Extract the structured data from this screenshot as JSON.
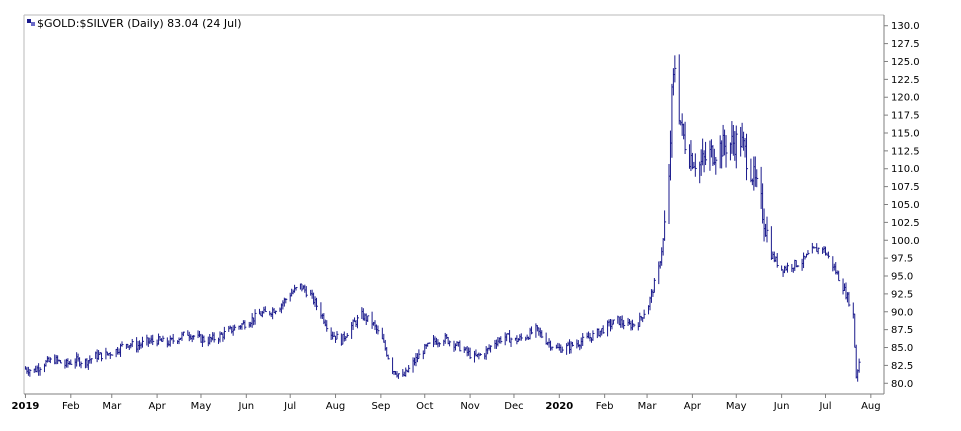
{
  "chart_data": {
    "type": "line",
    "style": "ohlc-bars",
    "title": "$GOLD:$SILVER (Daily) 83.04 (24 Jul)",
    "symbol_icon": "chart-icon",
    "xlabel": "",
    "ylabel": "",
    "ylim": [
      78.5,
      131.5
    ],
    "y_ticks": [
      80.0,
      82.5,
      85.0,
      87.5,
      90.0,
      92.5,
      95.0,
      97.5,
      100.0,
      102.5,
      105.0,
      107.5,
      110.0,
      112.5,
      115.0,
      117.5,
      120.0,
      122.5,
      125.0,
      127.5,
      130.0
    ],
    "y_tick_labels": [
      "80.0",
      "82.5",
      "85.0",
      "87.5",
      "90.0",
      "92.5",
      "95.0",
      "97.5",
      "100.0",
      "102.5",
      "105.0",
      "107.5",
      "110.0",
      "112.5",
      "115.0",
      "117.5",
      "120.0",
      "122.5",
      "125.0",
      "127.5",
      "130.0"
    ],
    "y_axis_side": "right",
    "x_ticks": [
      {
        "label": "2019",
        "date": "2019-01-01",
        "bold": true
      },
      {
        "label": "Feb",
        "date": "2019-02-01"
      },
      {
        "label": "Mar",
        "date": "2019-03-01"
      },
      {
        "label": "Apr",
        "date": "2019-04-01"
      },
      {
        "label": "May",
        "date": "2019-05-01"
      },
      {
        "label": "Jun",
        "date": "2019-06-01"
      },
      {
        "label": "Jul",
        "date": "2019-07-01"
      },
      {
        "label": "Aug",
        "date": "2019-08-01"
      },
      {
        "label": "Sep",
        "date": "2019-09-01"
      },
      {
        "label": "Oct",
        "date": "2019-10-01"
      },
      {
        "label": "Nov",
        "date": "2019-11-01"
      },
      {
        "label": "Dec",
        "date": "2019-12-01"
      },
      {
        "label": "2020",
        "date": "2020-01-01",
        "bold": true
      },
      {
        "label": "Feb",
        "date": "2020-02-01"
      },
      {
        "label": "Mar",
        "date": "2020-03-01"
      },
      {
        "label": "Apr",
        "date": "2020-04-01"
      },
      {
        "label": "May",
        "date": "2020-05-01"
      },
      {
        "label": "Jun",
        "date": "2020-06-01"
      },
      {
        "label": "Jul",
        "date": "2020-07-01"
      },
      {
        "label": "Aug",
        "date": "2020-08-01"
      }
    ],
    "x_range": [
      "2018-12-31",
      "2020-08-10"
    ],
    "grid": false,
    "legend": "none",
    "series": [
      {
        "color": "#1a1a8c",
        "points": [
          [
            "2019-01-01",
            82.0
          ],
          [
            "2019-01-07",
            81.8
          ],
          [
            "2019-01-14",
            82.8
          ],
          [
            "2019-01-21",
            83.3
          ],
          [
            "2019-01-28",
            82.6
          ],
          [
            "2019-02-04",
            83.2
          ],
          [
            "2019-02-11",
            83.0
          ],
          [
            "2019-02-18",
            83.8
          ],
          [
            "2019-02-25",
            84.0
          ],
          [
            "2019-03-04",
            84.6
          ],
          [
            "2019-03-11",
            85.6
          ],
          [
            "2019-03-18",
            85.2
          ],
          [
            "2019-03-25",
            85.8
          ],
          [
            "2019-04-01",
            86.0
          ],
          [
            "2019-04-08",
            85.6
          ],
          [
            "2019-04-15",
            86.3
          ],
          [
            "2019-04-22",
            87.0
          ],
          [
            "2019-04-29",
            86.3
          ],
          [
            "2019-05-06",
            86.0
          ],
          [
            "2019-05-13",
            86.5
          ],
          [
            "2019-05-20",
            87.3
          ],
          [
            "2019-05-27",
            88.0
          ],
          [
            "2019-06-03",
            88.7
          ],
          [
            "2019-06-10",
            89.6
          ],
          [
            "2019-06-17",
            90.0
          ],
          [
            "2019-06-24",
            90.8
          ],
          [
            "2019-07-01",
            92.5
          ],
          [
            "2019-07-08",
            93.6
          ],
          [
            "2019-07-15",
            92.3
          ],
          [
            "2019-07-22",
            89.8
          ],
          [
            "2019-07-29",
            87.0
          ],
          [
            "2019-08-05",
            86.0
          ],
          [
            "2019-08-12",
            88.0
          ],
          [
            "2019-08-19",
            89.5
          ],
          [
            "2019-08-26",
            88.5
          ],
          [
            "2019-09-02",
            86.0
          ],
          [
            "2019-09-09",
            82.0
          ],
          [
            "2019-09-16",
            80.8
          ],
          [
            "2019-09-23",
            82.8
          ],
          [
            "2019-09-30",
            84.6
          ],
          [
            "2019-10-07",
            85.8
          ],
          [
            "2019-10-14",
            86.3
          ],
          [
            "2019-10-21",
            85.6
          ],
          [
            "2019-10-28",
            84.6
          ],
          [
            "2019-11-04",
            83.6
          ],
          [
            "2019-11-11",
            84.2
          ],
          [
            "2019-11-18",
            85.8
          ],
          [
            "2019-11-25",
            86.5
          ],
          [
            "2019-12-02",
            86.0
          ],
          [
            "2019-12-09",
            86.5
          ],
          [
            "2019-12-16",
            87.5
          ],
          [
            "2019-12-23",
            86.0
          ],
          [
            "2019-12-30",
            84.8
          ],
          [
            "2020-01-06",
            85.0
          ],
          [
            "2020-01-13",
            85.6
          ],
          [
            "2020-01-20",
            86.2
          ],
          [
            "2020-01-27",
            87.0
          ],
          [
            "2020-02-03",
            88.0
          ],
          [
            "2020-02-10",
            88.8
          ],
          [
            "2020-02-17",
            88.0
          ],
          [
            "2020-02-24",
            88.5
          ],
          [
            "2020-03-02",
            91.0
          ],
          [
            "2020-03-09",
            96.0
          ],
          [
            "2020-03-12",
            100.0
          ],
          [
            "2020-03-16",
            108.0
          ],
          [
            "2020-03-18",
            120.0
          ],
          [
            "2020-03-20",
            124.5
          ],
          [
            "2020-03-23",
            118.0
          ],
          [
            "2020-03-25",
            115.0
          ],
          [
            "2020-03-30",
            112.0
          ],
          [
            "2020-04-06",
            110.5
          ],
          [
            "2020-04-13",
            112.0
          ],
          [
            "2020-04-20",
            113.0
          ],
          [
            "2020-04-27",
            113.5
          ],
          [
            "2020-05-04",
            114.0
          ],
          [
            "2020-05-11",
            110.0
          ],
          [
            "2020-05-18",
            105.0
          ],
          [
            "2020-05-25",
            98.0
          ],
          [
            "2020-06-01",
            96.0
          ],
          [
            "2020-06-08",
            96.5
          ],
          [
            "2020-06-15",
            97.0
          ],
          [
            "2020-06-22",
            98.5
          ],
          [
            "2020-06-29",
            99.0
          ],
          [
            "2020-07-06",
            96.5
          ],
          [
            "2020-07-13",
            93.5
          ],
          [
            "2020-07-17",
            91.5
          ],
          [
            "2020-07-20",
            89.5
          ],
          [
            "2020-07-22",
            81.0
          ],
          [
            "2020-07-24",
            83.04
          ]
        ]
      }
    ]
  }
}
